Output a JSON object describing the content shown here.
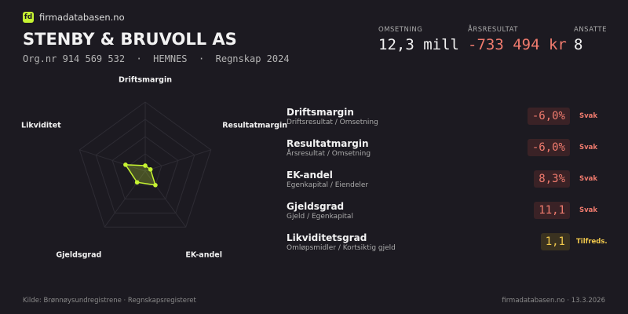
{
  "header": {
    "logo": "fd",
    "brand": "firmadatabasen.no",
    "company": "STENBY & BRUVOLL AS",
    "meta": "Org.nr 914 569 532  ·  HEMNES  ·  Regnskap 2024"
  },
  "metrics": [
    {
      "label": "OMSETNING",
      "value": "12,3 mill",
      "color": "#f2f2f2"
    },
    {
      "label": "ÅRSRESULTAT",
      "value": "-733 494 kr",
      "color": "#f07b6e"
    },
    {
      "label": "ANSATTE",
      "value": "8",
      "color": "#f2f2f2"
    }
  ],
  "radar": {
    "axes": [
      "Driftsmargin",
      "Resultatmargin",
      "EK-andel",
      "Gjeldsgrad",
      "Likviditet"
    ],
    "scores": [
      8,
      8,
      25,
      20,
      30
    ],
    "rlim": [
      0,
      100
    ],
    "rings": [
      25,
      50,
      75,
      100
    ],
    "color": "#c6f432"
  },
  "ratios": [
    {
      "name": "Driftsmargin",
      "formula": "Driftsresultat / Omsetning",
      "value": "-6,0%",
      "rating": "Svak",
      "color": "#f07b6e",
      "badge": "#3a2226"
    },
    {
      "name": "Resultatmargin",
      "formula": "Årsresultat / Omsetning",
      "value": "-6,0%",
      "rating": "Svak",
      "color": "#f07b6e",
      "badge": "#3a2226"
    },
    {
      "name": "EK-andel",
      "formula": "Egenkapital / Eiendeler",
      "value": "8,3%",
      "rating": "Svak",
      "color": "#f07b6e",
      "badge": "#3a2226"
    },
    {
      "name": "Gjeldsgrad",
      "formula": "Gjeld / Egenkapital",
      "value": "11,1",
      "rating": "Svak",
      "color": "#f07b6e",
      "badge": "#3a2226"
    },
    {
      "name": "Likviditetsgrad",
      "formula": "Omløpsmidler / Kortsiktig gjeld",
      "value": "1,1",
      "rating": "Tilfreds.",
      "color": "#f2c94c",
      "badge": "#3a3220"
    }
  ],
  "footer": {
    "source": "Kilde: Brønnøysundregistrene · Regnskapsregisteret",
    "site": "firmadatabasen.no · 13.3.2026"
  }
}
